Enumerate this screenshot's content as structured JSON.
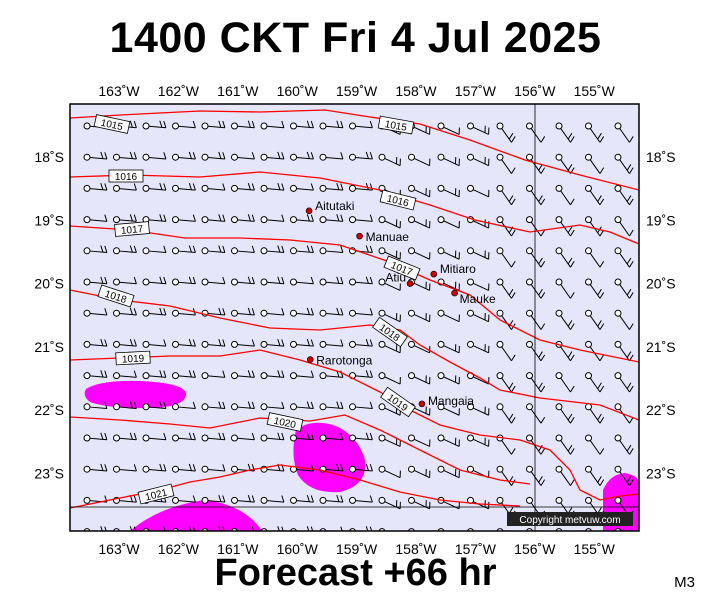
{
  "title": "1400 CKT Fri 4 Jul 2025",
  "footer": "Forecast +66 hr",
  "model": "M3",
  "copyright": "Copyright metvuw.com",
  "colors": {
    "sea": "#e6e6fa",
    "isobar": "#ff0000",
    "rain": "#ff00ff",
    "town": "#cc0000"
  },
  "longitudes": [
    {
      "value": -163,
      "label": "163˚W"
    },
    {
      "value": -162,
      "label": "162˚W"
    },
    {
      "value": -161,
      "label": "161˚W"
    },
    {
      "value": -160,
      "label": "160˚W"
    },
    {
      "value": -159,
      "label": "159˚W"
    },
    {
      "value": -158,
      "label": "158˚W"
    },
    {
      "value": -157,
      "label": "157˚W"
    },
    {
      "value": -156,
      "label": "156˚W"
    },
    {
      "value": -155,
      "label": "155˚W"
    }
  ],
  "latitudes": [
    {
      "value": -18,
      "label": "18˚S"
    },
    {
      "value": -19,
      "label": "19˚S"
    },
    {
      "value": -20,
      "label": "20˚S"
    },
    {
      "value": -21,
      "label": "21˚S"
    },
    {
      "value": -22,
      "label": "22˚S"
    },
    {
      "value": -23,
      "label": "23˚S"
    }
  ],
  "towns": [
    {
      "name": "Aitutaki",
      "lon": -159.8,
      "lat": -18.85
    },
    {
      "name": "Manuae",
      "lon": -158.95,
      "lat": -19.25
    },
    {
      "name": "Mitiaro",
      "lon": -157.7,
      "lat": -19.85
    },
    {
      "name": "Atiu",
      "lon": -158.1,
      "lat": -20.0
    },
    {
      "name": "Mauke",
      "lon": -157.35,
      "lat": -20.15
    },
    {
      "name": "Rarotonga",
      "lon": -159.78,
      "lat": -21.2
    },
    {
      "name": "Mangaia",
      "lon": -157.9,
      "lat": -21.9
    }
  ],
  "isobar_labels": [
    "1015",
    "1015",
    "1016",
    "1016",
    "1017",
    "1017",
    "1018",
    "1018",
    "1019",
    "1019",
    "1020",
    "1021"
  ]
}
